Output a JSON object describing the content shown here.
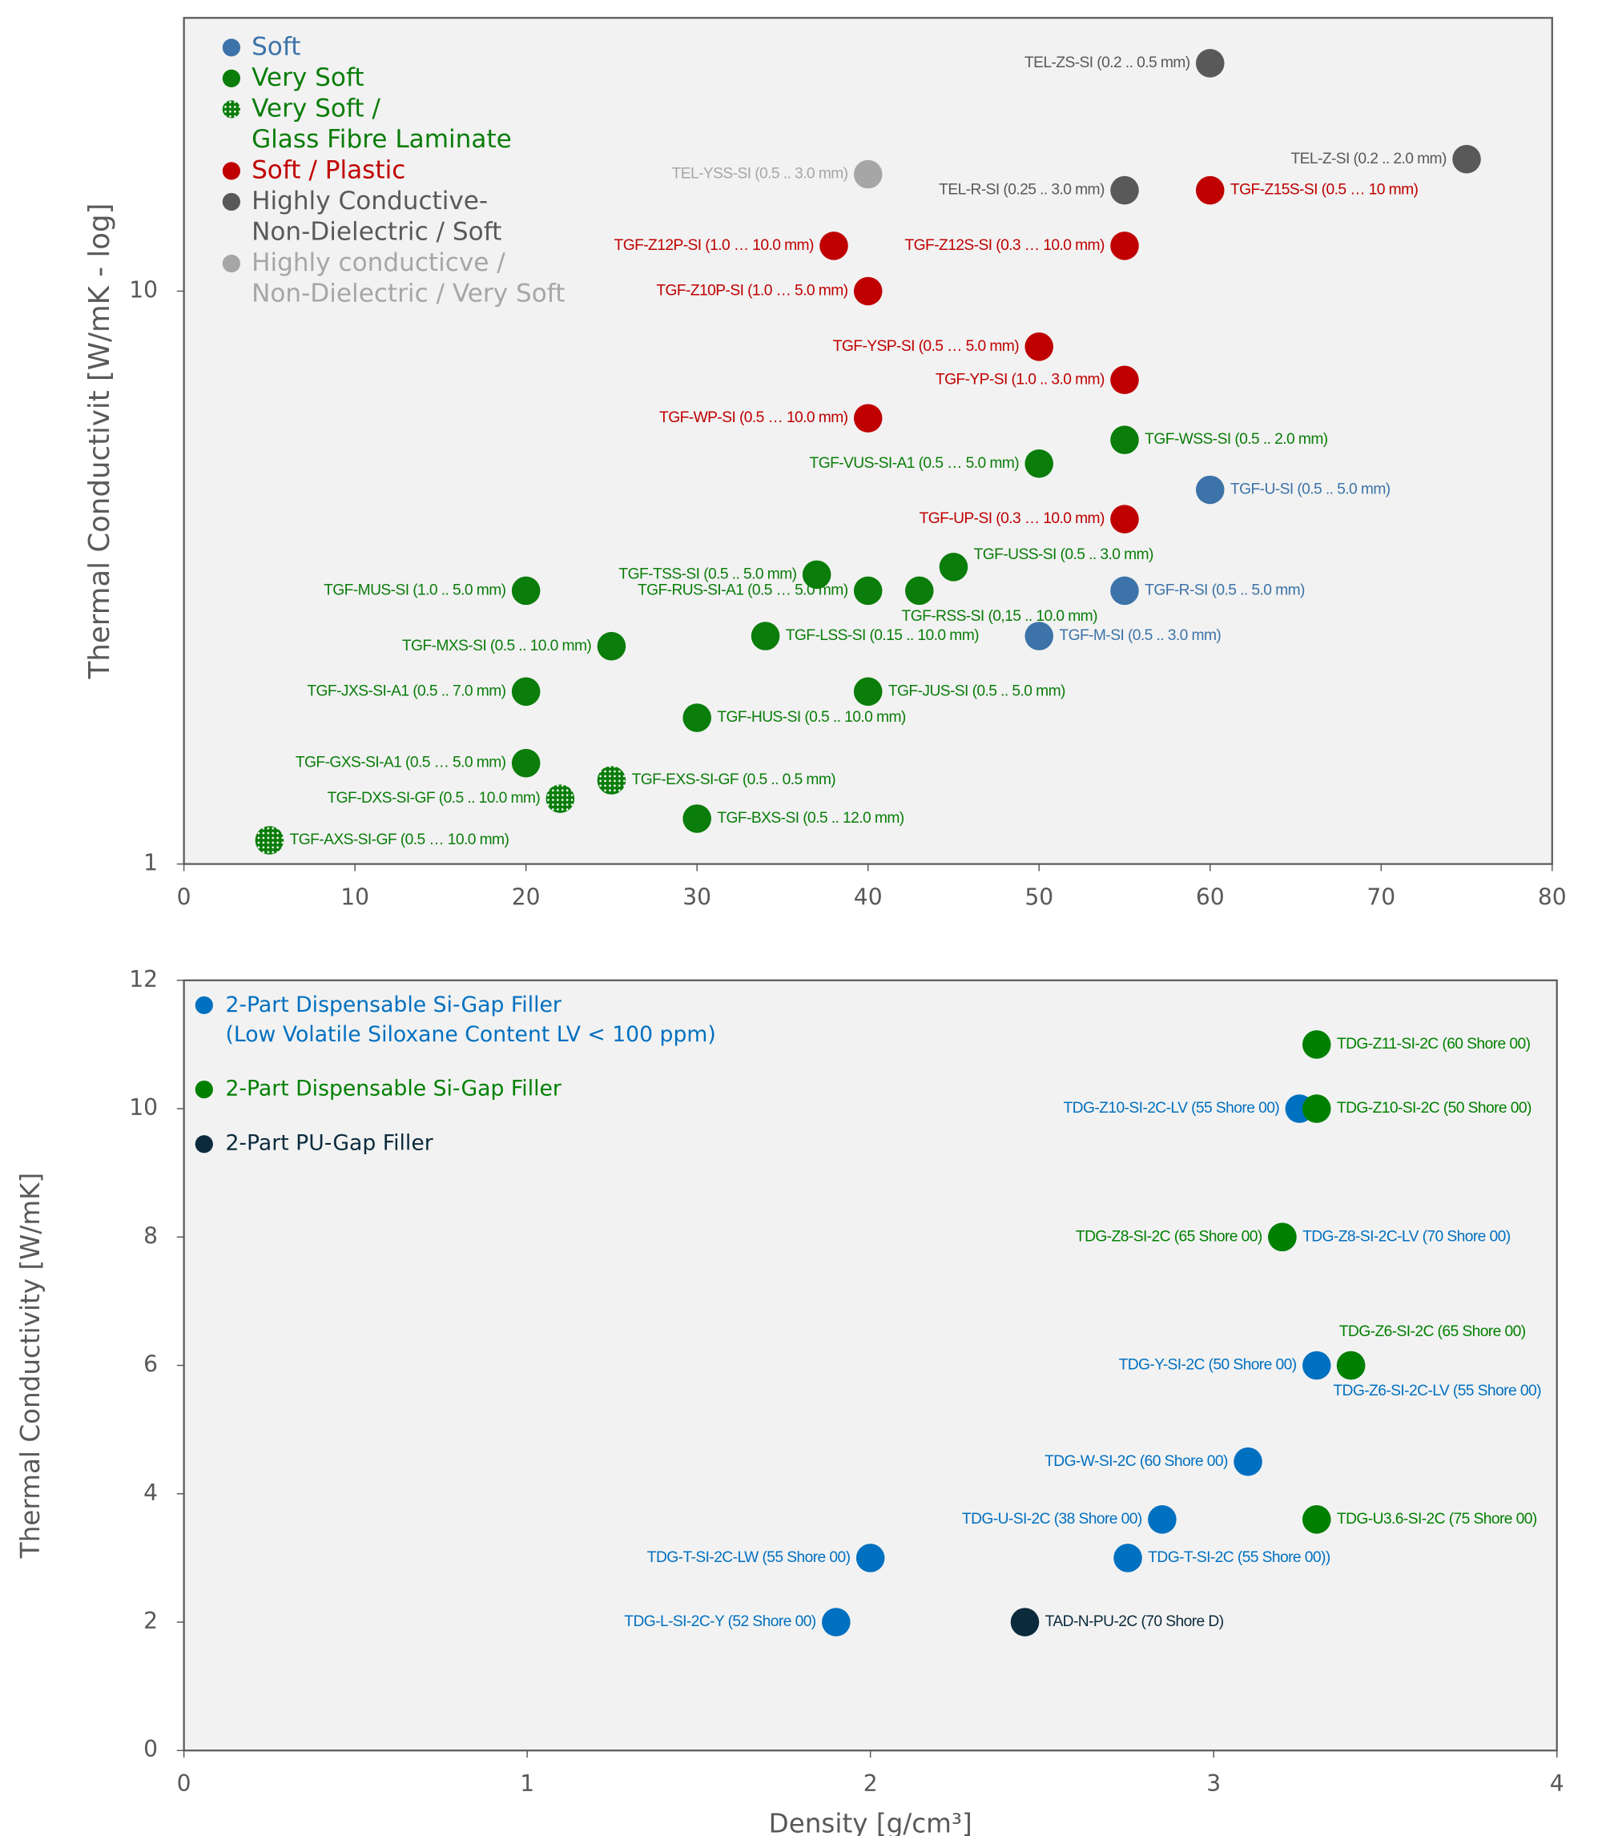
{
  "chart_data": [
    {
      "type": "scatter",
      "yscale": "log",
      "ylabel": "Thermal Conductivit [W/mK - log]",
      "xlim": [
        0,
        80
      ],
      "xticks": [
        0,
        10,
        20,
        30,
        40,
        50,
        60,
        70,
        80
      ],
      "ylim": [
        1,
        30
      ],
      "yticks": [
        1,
        10
      ],
      "legend": "upper left",
      "series": [
        {
          "name": "Soft",
          "color": "#3c73a8",
          "labels": [
            "TGF-U-SI (0.5 .. 5.0 mm)",
            "TGF-R-SI (0.5 .. 5.0 mm)",
            "TGF-M-SI (0.5 .. 3.0 mm)"
          ],
          "x": [
            60,
            55,
            50
          ],
          "values": [
            4.5,
            3.0,
            2.5
          ]
        },
        {
          "name": "Very Soft",
          "color": "#0a7d0a",
          "labels": [
            "TGF-WSS-SI (0.5 .. 2.0 mm)",
            "TGF-VUS-SI-A1 (0.5 … 5.0 mm)",
            "TGF-USS-SI (0.5 .. 3.0 mm)",
            "TGF-TSS-SI (0.5 .. 5.0 mm)",
            "TGF-RUS-SI-A1 (0.5 … 5.0 mm)",
            "TGF-RSS-SI (0,15 .. 10.0 mm)",
            "TGF-MUS-SI (1.0 .. 5.0 mm)",
            "TGF-MXS-SI (0.5 .. 10.0 mm)",
            "TGF-LSS-SI (0.15 .. 10.0 mm)",
            "TGF-JXS-SI-A1 (0.5 .. 7.0 mm)",
            "TGF-JUS-SI (0.5 .. 5.0 mm)",
            "TGF-HUS-SI  (0.5 .. 10.0 mm)",
            "TGF-GXS-SI-A1 (0.5 … 5.0 mm)",
            "TGF-BXS-SI (0.5 .. 12.0 mm)"
          ],
          "x": [
            55,
            50,
            45,
            37,
            40,
            43,
            20,
            25,
            34,
            20,
            40,
            30,
            20,
            30
          ],
          "values": [
            5.5,
            5.0,
            3.3,
            3.2,
            3.0,
            3.0,
            3.0,
            2.4,
            2.5,
            2.0,
            2.0,
            1.8,
            1.5,
            1.2
          ]
        },
        {
          "name": "Very Soft / Glass Fibre Laminate",
          "color": "#0a7d0a",
          "labels": [
            "TGF-EXS-SI-GF (0.5 .. 0.5 mm)",
            "TGF-DXS-SI-GF (0.5 .. 10.0 mm)",
            "TGF-AXS-SI-GF (0.5 … 10.0 mm)"
          ],
          "x": [
            25,
            22,
            5
          ],
          "values": [
            1.4,
            1.3,
            1.1
          ]
        },
        {
          "name": "Soft / Plastic",
          "color": "#c00000",
          "labels": [
            "TGF-Z15S-SI (0.5 … 10 mm)",
            "TGF-Z12P-SI (1.0 … 10.0 mm)",
            "TGF-Z12S-SI (0.3 … 10.0 mm)",
            "TGF-Z10P-SI (1.0 … 5.0 mm)",
            "TGF-YSP-SI (0.5 … 5.0 mm)",
            "TGF-YP-SI (1.0 .. 3.0 mm)",
            "TGF-WP-SI (0.5 … 10.0 mm)",
            "TGF-UP-SI (0.3 … 10.0 mm)"
          ],
          "x": [
            60,
            38,
            55,
            40,
            50,
            55,
            40,
            55
          ],
          "values": [
            15,
            12,
            12,
            10,
            8,
            7,
            6,
            4
          ]
        },
        {
          "name": "Highly Conductive-Non-Dielectric / Soft",
          "color": "#595959",
          "labels": [
            "TEL-ZS-SI (0.2 .. 0.5 mm)",
            "TEL-Z-SI (0.2 .. 2.0 mm)",
            "TEL-R-SI (0.25 .. 3.0 mm)"
          ],
          "x": [
            60,
            75,
            55
          ],
          "values": [
            25,
            17,
            15
          ]
        },
        {
          "name": "Highly conducticve / Non-Dielectric / Very Soft",
          "color": "#a6a6a6",
          "labels": [
            "TEL-YSS-SI (0.5 .. 3.0 mm)"
          ],
          "x": [
            40
          ],
          "values": [
            16
          ]
        }
      ]
    },
    {
      "type": "scatter",
      "ylabel": "Thermal Conductivity [W/mK]",
      "xlabel": "Density [g/cm³]",
      "xlim": [
        0,
        4
      ],
      "xticks": [
        0,
        1,
        2,
        3,
        4
      ],
      "ylim": [
        0,
        12
      ],
      "yticks": [
        0,
        2,
        4,
        6,
        8,
        10,
        12
      ],
      "legend": "upper left",
      "series": [
        {
          "name": "2-Part Dispensable Si-Gap Filler (Low Volatile Siloxane Content LV < 100 ppm)",
          "color": "#0070c0",
          "labels": [
            "TDG-Z10-SI-2C-LV (55 Shore 00)",
            "TDG-Z8-SI-2C-LV (70 Shore 00)",
            "TDG-Z6-SI-2C-LV (55 Shore 00)",
            "TDG-Y-SI-2C (50 Shore 00)",
            "TDG-W-SI-2C (60 Shore 00)",
            "TDG-U-SI-2C (38 Shore 00)",
            "TDG-T-SI-2C (55 Shore 00))",
            "TDG-T-SI-2C-LW (55 Shore 00)",
            "TDG-L-SI-2C-Y (52 Shore 00)"
          ],
          "x": [
            3.25,
            3.2,
            3.4,
            3.3,
            3.1,
            2.85,
            2.75,
            2.0,
            1.9
          ],
          "values": [
            10,
            8,
            6,
            6,
            4.5,
            3.6,
            3.0,
            3.0,
            2.0
          ]
        },
        {
          "name": "2-Part Dispensable Si-Gap Filler",
          "color": "#008000",
          "labels": [
            "TDG-Z11-SI-2C (60 Shore 00)",
            "TDG-Z10-SI-2C (50 Shore 00)",
            "TDG-Z8-SI-2C (65 Shore 00)",
            "TDG-Z6-SI-2C (65 Shore 00)",
            "TDG-U3.6-SI-2C (75 Shore 00)"
          ],
          "x": [
            3.3,
            3.3,
            3.2,
            3.4,
            3.3
          ],
          "values": [
            11,
            10,
            8,
            6,
            3.6
          ]
        },
        {
          "name": "2-Part PU-Gap Filler",
          "color": "#0b2a3c",
          "labels": [
            "TAD-N-PU-2C (70 Shore D)"
          ],
          "x": [
            2.45
          ],
          "values": [
            2.0
          ]
        }
      ]
    }
  ]
}
